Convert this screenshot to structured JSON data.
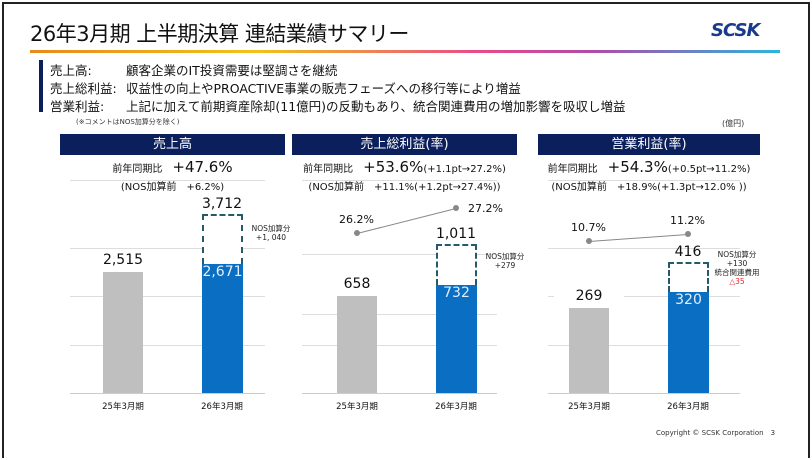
{
  "title": "26年3月期 上半期決算 連結業績サマリー",
  "logo": "SCSK",
  "comments": [
    {
      "key": "売上高:",
      "text": "顧客企業のIT投資需要は堅調さを継続"
    },
    {
      "key": "売上総利益:",
      "text": "収益性の向上やPROACTIVE事業の販売フェーズへの移行等により増益"
    },
    {
      "key": "営業利益:",
      "text": "上記に加えて前期資産除却(11億円)の反動もあり、統合関連費用の増加影響を吸収し増益"
    }
  ],
  "note": "(※コメントはNOS加算分を除く)",
  "unit": "(億円)",
  "footer": "Copyright © SCSK Corporation　3",
  "colors": {
    "navy": "#0b1f5c",
    "blue": "#0a6fc2",
    "gray": "#bfbfbf",
    "negative": "#e8282d"
  },
  "chart_data": [
    {
      "type": "bar",
      "title": "売上高",
      "yoy_label": "前年同期比",
      "yoy": "+47.6%",
      "yoy_extra": "",
      "pre_nos": "(NOS加算前　+6.2%)",
      "categories": [
        "25年3月期",
        "26年3月期"
      ],
      "values": [
        2515,
        2671
      ],
      "value_labels": [
        "2,515",
        "2,671"
      ],
      "total": 3712,
      "total_label": "3,712",
      "nos": [
        "NOS加算分",
        "+1, 040"
      ],
      "rates": null
    },
    {
      "type": "bar",
      "title": "売上総利益(率)",
      "yoy_label": "前年同期比",
      "yoy": "+53.6%",
      "yoy_extra": "(+1.1pt→27.2%)",
      "pre_nos": "(NOS加算前　+11.1%(+1.2pt→27.4%))",
      "categories": [
        "25年3月期",
        "26年3月期"
      ],
      "values": [
        658,
        732
      ],
      "value_labels": [
        "658",
        "732"
      ],
      "total": 1011,
      "total_label": "1,011",
      "nos": [
        "NOS加算分",
        "+279"
      ],
      "rates": [
        "26.2%",
        "27.2%"
      ],
      "rate_values": [
        26.2,
        27.2
      ]
    },
    {
      "type": "bar",
      "title": "営業利益(率)",
      "yoy_label": "前年同期比",
      "yoy": "+54.3%",
      "yoy_extra": "(+0.5pt→11.2%)",
      "pre_nos": "(NOS加算前　+18.9%(+1.3pt→12.0% ))",
      "categories": [
        "25年3月期",
        "26年3月期"
      ],
      "values": [
        269,
        320
      ],
      "value_labels": [
        "269",
        "320"
      ],
      "total": 416,
      "total_label": "416",
      "nos": [
        "NOS加算分",
        "+130",
        "統合関連費用"
      ],
      "nos_negative": "△35",
      "rates": [
        "10.7%",
        "11.2%"
      ],
      "rate_values": [
        10.7,
        11.2
      ]
    }
  ]
}
